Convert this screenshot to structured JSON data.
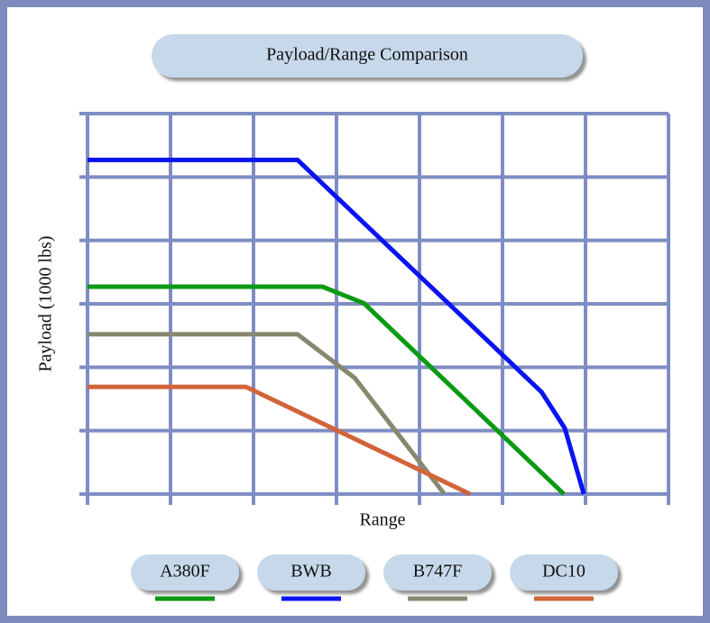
{
  "chart_data": {
    "type": "line",
    "title": "Payload/Range Comparison",
    "xlabel": "Range",
    "ylabel": "Payload (1000 lbs)",
    "xlim": [
      0,
      7
    ],
    "xticks": [
      0,
      1,
      2,
      3,
      4,
      5,
      6,
      7
    ],
    "ylim": [
      0,
      6
    ],
    "yticks": [
      0,
      1,
      2,
      3,
      4,
      5,
      6
    ],
    "grid": true,
    "series": [
      {
        "name": "A380F",
        "color": "#0a9a12",
        "x": [
          0,
          2.83,
          3.33,
          5.74
        ],
        "values": [
          3.27,
          3.27,
          3.01,
          0
        ]
      },
      {
        "name": "BWB",
        "color": "#0a14f0",
        "x": [
          0,
          2.53,
          5.47,
          5.75,
          5.98
        ],
        "values": [
          5.27,
          5.27,
          1.61,
          1.04,
          0
        ]
      },
      {
        "name": "B747F",
        "color": "#888870",
        "x": [
          0,
          2.53,
          3.22,
          4.3
        ],
        "values": [
          2.52,
          2.52,
          1.83,
          0
        ]
      },
      {
        "name": "DC10",
        "color": "#d2643a",
        "x": [
          0,
          1.91,
          4.61
        ],
        "values": [
          1.69,
          1.69,
          0
        ]
      }
    ]
  }
}
